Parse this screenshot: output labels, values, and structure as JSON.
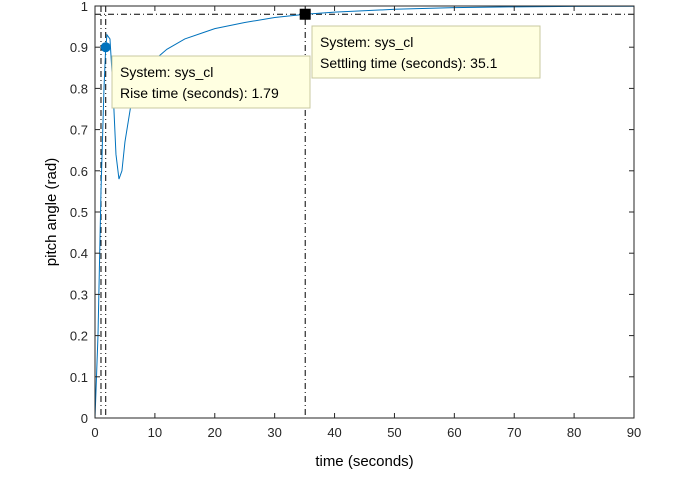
{
  "chart_data": {
    "type": "line",
    "title": "",
    "xlabel": "time (seconds)",
    "ylabel": "pitch angle (rad)",
    "xlim": [
      0,
      90
    ],
    "ylim": [
      0,
      1
    ],
    "x_ticks": [
      "0",
      "10",
      "20",
      "30",
      "40",
      "50",
      "60",
      "70",
      "80",
      "90"
    ],
    "y_ticks": [
      "0",
      "0.1",
      "0.2",
      "0.3",
      "0.4",
      "0.5",
      "0.6",
      "0.7",
      "0.8",
      "0.9",
      "1"
    ],
    "grid": false,
    "series": [
      {
        "name": "sys_cl",
        "color": "#0072bd",
        "points": [
          [
            0,
            0
          ],
          [
            0.5,
            0.2
          ],
          [
            1.0,
            0.55
          ],
          [
            1.5,
            0.8
          ],
          [
            1.79,
            0.9
          ],
          [
            2.0,
            0.93
          ],
          [
            2.5,
            0.92
          ],
          [
            3.0,
            0.8
          ],
          [
            3.5,
            0.64
          ],
          [
            4.0,
            0.58
          ],
          [
            4.5,
            0.6
          ],
          [
            5.0,
            0.67
          ],
          [
            6.0,
            0.76
          ],
          [
            7.0,
            0.8
          ],
          [
            8.0,
            0.83
          ],
          [
            10.0,
            0.87
          ],
          [
            12.0,
            0.895
          ],
          [
            15.0,
            0.92
          ],
          [
            18.0,
            0.935
          ],
          [
            20.0,
            0.945
          ],
          [
            25.0,
            0.96
          ],
          [
            30.0,
            0.972
          ],
          [
            35.1,
            0.98
          ],
          [
            40.0,
            0.985
          ],
          [
            50.0,
            0.992
          ],
          [
            60.0,
            0.996
          ],
          [
            70.0,
            0.998
          ],
          [
            80.0,
            0.999
          ],
          [
            90.0,
            0.9995
          ]
        ]
      }
    ],
    "reference_lines": {
      "horizontal": [
        1.0,
        0.98
      ],
      "vertical": [
        1.0,
        1.79,
        35.1
      ]
    },
    "annotations": [
      {
        "kind": "rise-time",
        "marker": "circle",
        "marker_color": "#0072bd",
        "point": [
          1.79,
          0.9
        ],
        "line1": "System: sys_cl",
        "line2": "Rise time (seconds): 1.79"
      },
      {
        "kind": "settling-time",
        "marker": "square",
        "marker_color": "#000000",
        "point": [
          35.1,
          0.98
        ],
        "line1": "System: sys_cl",
        "line2": "Settling time (seconds): 35.1"
      }
    ]
  }
}
